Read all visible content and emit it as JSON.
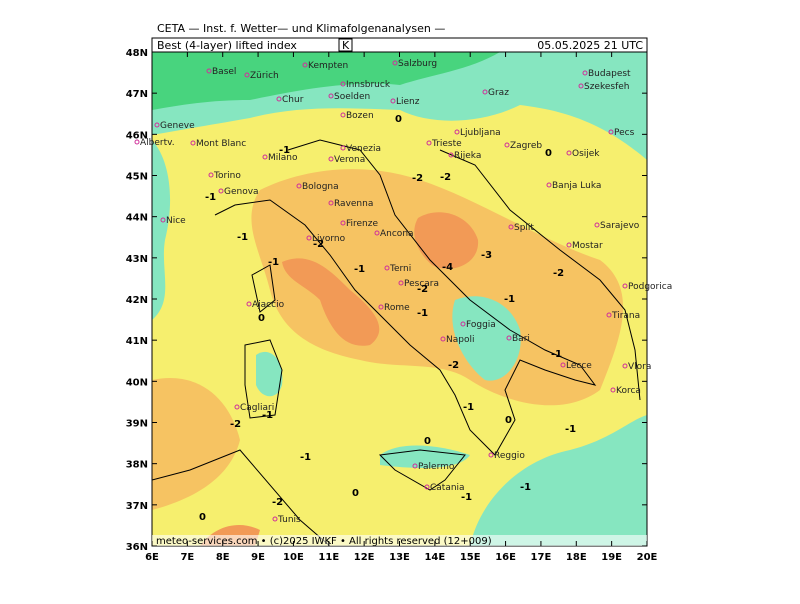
{
  "header": {
    "agency": "CETA — Inst. f. Wetter— und Klimafolgenanalysen —",
    "product": "Best (4-layer) lifted index",
    "unit": "K",
    "date": "05.05.2025 21 UTC"
  },
  "map": {
    "lat_labels": [
      "48N",
      "47N",
      "46N",
      "45N",
      "44N",
      "43N",
      "42N",
      "41N",
      "40N",
      "39N",
      "38N",
      "37N",
      "36N"
    ],
    "lon_labels": [
      "6E",
      "7E",
      "8E",
      "9E",
      "10E",
      "11E",
      "12E",
      "13E",
      "14E",
      "15E",
      "16E",
      "17E",
      "18E",
      "19E",
      "20E"
    ],
    "cities": [
      "Basel",
      "Zürich",
      "Kempten",
      "Salzburg",
      "Budapest",
      "Szekesfeh",
      "Innsbruck",
      "Chur",
      "Soelden",
      "Lienz",
      "Graz",
      "Bozen",
      "Geneve",
      "Ljubljana",
      "Pecs",
      "Albertv.",
      "Mont Blanc",
      "Milano",
      "Verona",
      "Venezia",
      "Trieste",
      "Rijeka",
      "Zagreb",
      "Osijek",
      "Torino",
      "Bologna",
      "Genova",
      "Banja Luka",
      "Ravenna",
      "Nice",
      "Firenze",
      "Split",
      "Sarajevo",
      "Livorno",
      "Ancona",
      "Mostar",
      "Podgorica",
      "Terni",
      "Pescara",
      "Ajaccio",
      "Rome",
      "Tirana",
      "Foggia",
      "Bari",
      "Napoli",
      "Lecce",
      "Vlora",
      "Korca",
      "Cagliari",
      "Reggio",
      "Palermo",
      "Catania",
      "Tunis"
    ],
    "contour_labels": [
      "-1",
      "0",
      "-1",
      "-2",
      "-1",
      "-2",
      "-1",
      "-1",
      "-2",
      "-1",
      "-1",
      "-2",
      "-3",
      "-4",
      "-2",
      "0",
      "-1",
      "-2",
      "-1",
      "-2",
      "-1",
      "0",
      "-1",
      "0",
      "-1",
      "0",
      "-1",
      "-1",
      "0",
      "-2",
      "0"
    ]
  },
  "footer": "meteo-services.com • (c)2025 IWKF • All rights reserved (12+009)"
}
